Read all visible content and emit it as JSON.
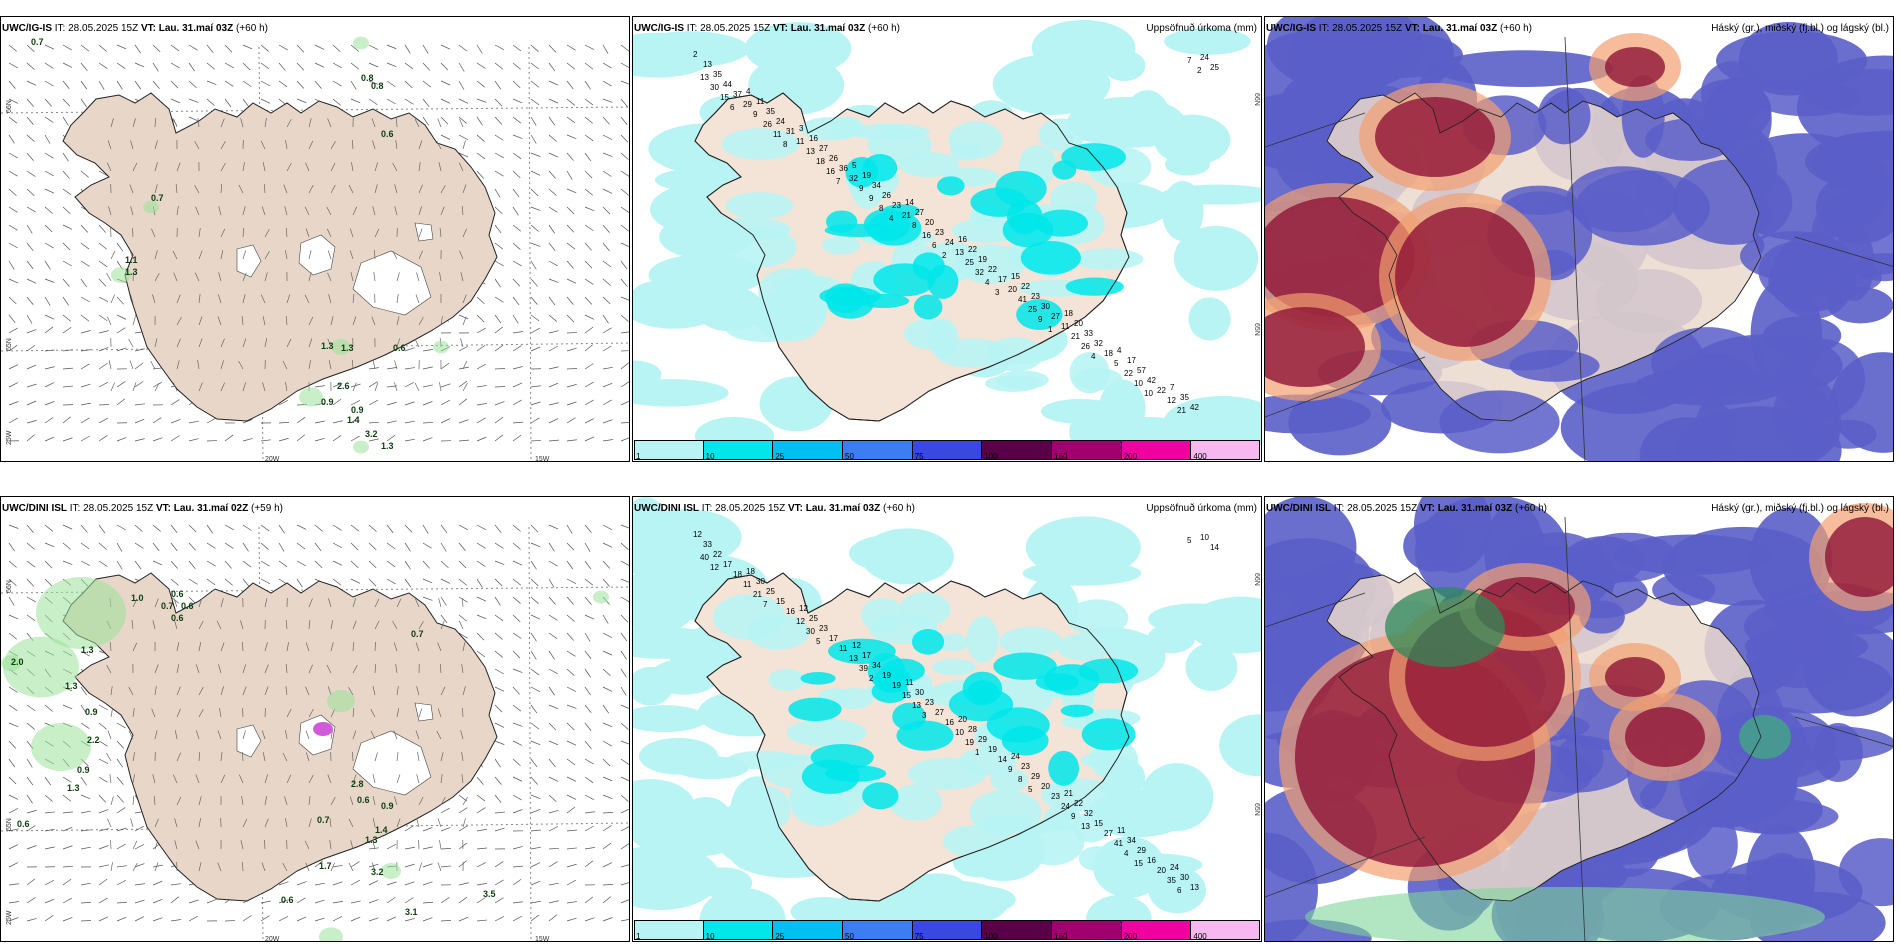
{
  "panels": [
    {
      "id": "tl",
      "model": "UWC/IG-IS",
      "it": "IT: 28.05.2025 15Z",
      "vt": "VT: Lau. 31.maí 03Z",
      "lead": "(+60 h)",
      "right_title": "",
      "type": "wind"
    },
    {
      "id": "tm",
      "model": "UWC/IG-IS",
      "it": "IT: 28.05.2025 15Z",
      "vt": "VT: Lau. 31.maí 03Z",
      "lead": "(+60 h)",
      "right_title": "Uppsöfnuð úrkoma (mm)",
      "type": "precip"
    },
    {
      "id": "tr",
      "model": "UWC/IG-IS",
      "it": "IT: 28.05.2025 15Z",
      "vt": "VT: Lau. 31.maí 03Z",
      "lead": "(+60 h)",
      "right_title": "Háský (gr.), miðský (fj.bl.) og lágský (bl.)",
      "type": "cloud"
    },
    {
      "id": "bl",
      "model": "UWC/DINI ISL",
      "it": "IT: 28.05.2025 15Z",
      "vt": "VT: Lau. 31.maí 02Z",
      "lead": "(+59 h)",
      "right_title": "",
      "type": "wind"
    },
    {
      "id": "bm",
      "model": "UWC/DINI ISL",
      "it": "IT: 28.05.2025 15Z",
      "vt": "VT: Lau. 31.maí 03Z",
      "lead": "(+60 h)",
      "right_title": "Uppsöfnuð úrkoma (mm)",
      "type": "precip"
    },
    {
      "id": "br",
      "model": "UWC/DINI ISL",
      "it": "IT: 28.05.2025 15Z",
      "vt": "VT: Lau. 31.maí 03Z",
      "lead": "(+60 h)",
      "right_title": "Háský (gr.), miðský (fj.bl.) og lágský (bl.)",
      "type": "cloud"
    }
  ],
  "legend": {
    "labels": [
      "1",
      "10",
      "25",
      "50",
      "75",
      "100",
      "150",
      "200",
      "400"
    ],
    "colors": [
      "#b8f4f4",
      "#00e6ea",
      "#00c0f0",
      "#3c7ef0",
      "#3848e0",
      "#5a0048",
      "#a0006e",
      "#f000a0",
      "#f6b8ee"
    ]
  },
  "axis_labels": {
    "tl": [
      "66N",
      "65N",
      "20W",
      "15W",
      "25W"
    ],
    "bl": [
      "66N",
      "65N",
      "20W",
      "15W",
      "25W"
    ],
    "tm": [
      "66N",
      "65N"
    ],
    "bm": [
      "66N",
      "65N"
    ]
  },
  "precip_values": {
    "tm": [
      "2",
      "4",
      "3",
      "5",
      "14",
      "16",
      "15",
      "18",
      "4",
      "7",
      "13",
      "11",
      "16",
      "19",
      "27",
      "22",
      "22",
      "20",
      "17",
      "35",
      "35",
      "35",
      "27",
      "34",
      "20",
      "19",
      "23",
      "33",
      "57",
      "42",
      "44",
      "24",
      "26",
      "26",
      "23",
      "22",
      "30",
      "32",
      "42",
      "24",
      "37",
      "31",
      "36",
      "23",
      "24",
      "17",
      "27",
      "18",
      "22",
      "25",
      "29",
      "11",
      "32",
      "21",
      "13",
      "20",
      "11",
      "5",
      "12",
      "13",
      "9",
      "13",
      "9",
      "8",
      "25",
      "41",
      "21",
      "22",
      "21",
      "30",
      "26",
      "18",
      "9",
      "16",
      "32",
      "25",
      "26",
      "10",
      "7",
      "15",
      "11",
      "16",
      "8",
      "6",
      "4",
      "9",
      "4",
      "10",
      "2",
      "6",
      "8",
      "7",
      "4",
      "2",
      "3",
      "1"
    ],
    "bm": [
      "12",
      "18",
      "12",
      "12",
      "11",
      "20",
      "24",
      "21",
      "11",
      "24",
      "33",
      "30",
      "25",
      "17",
      "30",
      "28",
      "23",
      "22",
      "34",
      "30",
      "22",
      "25",
      "23",
      "34",
      "23",
      "29",
      "29",
      "32",
      "29",
      "13",
      "17",
      "15",
      "17",
      "19",
      "27",
      "19",
      "20",
      "15",
      "16",
      "10",
      "18",
      "16",
      "11",
      "19",
      "16",
      "14",
      "23",
      "27",
      "20",
      "14",
      "11",
      "12",
      "13",
      "15",
      "10",
      "9",
      "24",
      "41",
      "35",
      "40",
      "21",
      "30",
      "39",
      "13",
      "19",
      "8",
      "9",
      "4",
      "6",
      "12",
      "7",
      "5",
      "2",
      "3",
      "1",
      "5",
      "13",
      "15",
      "5"
    ]
  },
  "wind_values": {
    "tl": [
      "0.7",
      "0.8",
      "0.6",
      "0.8",
      "0.7",
      "1.1",
      "1.3",
      "1.3",
      "1.3",
      "2.6",
      "0.6",
      "0.9",
      "0.9",
      "1.4",
      "3.2",
      "1.3"
    ],
    "bl": [
      "1.0",
      "0.6",
      "0.7",
      "0.6",
      "0.6",
      "0.7",
      "2.0",
      "1.3",
      "1.3",
      "0.9",
      "2.2",
      "0.9",
      "1.3",
      "0.6",
      "0.7",
      "2.8",
      "0.6",
      "0.9",
      "1.4",
      "1.3",
      "1.7",
      "3.2",
      "0.6",
      "3.1",
      "3.5"
    ]
  }
}
